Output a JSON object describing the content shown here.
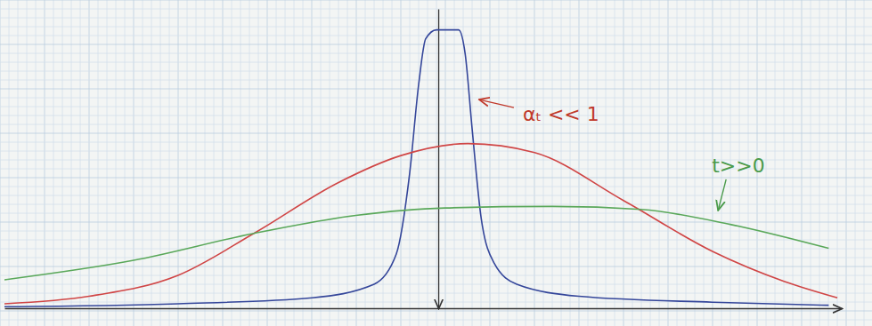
{
  "chart_data": {
    "type": "line",
    "xlim": [
      -10,
      9.3
    ],
    "ylim": [
      0,
      10
    ],
    "xticks": [],
    "yticks": [],
    "tick_labels": false,
    "grid": false,
    "series": [
      {
        "color": "#34469a",
        "x": [
          -10,
          -6,
          -2.9,
          -1.48,
          -0.97,
          -0.66,
          -0.45,
          -0.29,
          -0.04,
          0.47,
          0.62,
          0.78,
          0.99,
          1.29,
          1.81,
          3.24,
          6.32,
          9.0
        ],
        "values": [
          0.05,
          0.15,
          0.35,
          0.8,
          1.8,
          4.5,
          7.5,
          9.0,
          9.3,
          9.3,
          8.5,
          6,
          3,
          1.5,
          0.8,
          0.4,
          0.2,
          0.1
        ]
      },
      {
        "color": "#d04545",
        "x": [
          -10,
          -8.05,
          -6,
          -4.25,
          -2.3,
          -0.86,
          0.68,
          2.22,
          4.27,
          6.32,
          7.97,
          9.2
        ],
        "values": [
          0.15,
          0.4,
          1.1,
          2.5,
          4.2,
          5.1,
          5.5,
          5.2,
          3.6,
          1.9,
          0.9,
          0.35
        ]
      },
      {
        "color": "#5aa85a",
        "x": [
          -10,
          -7.02,
          -4.25,
          -1.9,
          0.16,
          2.63,
          4.68,
          6.73,
          9.0
        ],
        "values": [
          0.95,
          1.6,
          2.5,
          3.1,
          3.35,
          3.4,
          3.3,
          2.8,
          2.0
        ]
      }
    ],
    "annotations": [
      {
        "text": "αₜ << 1",
        "x": 0.88,
        "y": 6.97,
        "color": "#c0392b"
      },
      {
        "text": "t>>0",
        "x": 6.43,
        "y": 3.18,
        "color": "#4a9a4a"
      }
    ]
  }
}
